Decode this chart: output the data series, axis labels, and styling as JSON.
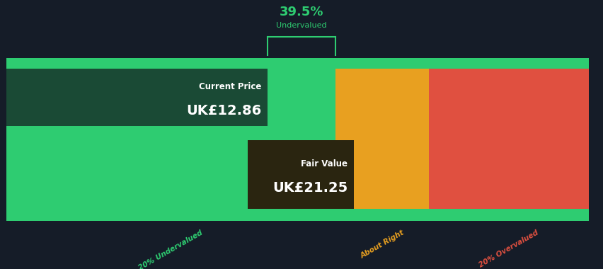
{
  "bg_color": "#151c28",
  "green": "#2ecc71",
  "dark_green": "#1a4a35",
  "orange": "#e8a020",
  "red": "#e05040",
  "dark_brown": "#2a2510",
  "current_price_label": "Current Price",
  "current_price_value": "UK£12.86",
  "fair_value_label": "Fair Value",
  "fair_value_value": "UK£21.25",
  "discount_pct": "39.5%",
  "discount_sublabel": "Undervalued",
  "section_labels": [
    "20% Undervalued",
    "About Right",
    "20% Overvalued"
  ],
  "section_colors": [
    "#2ecc71",
    "#e8a020",
    "#e05040"
  ],
  "fig_width": 8.53,
  "fig_height": 3.8,
  "dpi": 100,
  "current_price": 12.86,
  "fair_value": 21.25,
  "fv_max": 25.5,
  "note_green": "#2ecc71"
}
